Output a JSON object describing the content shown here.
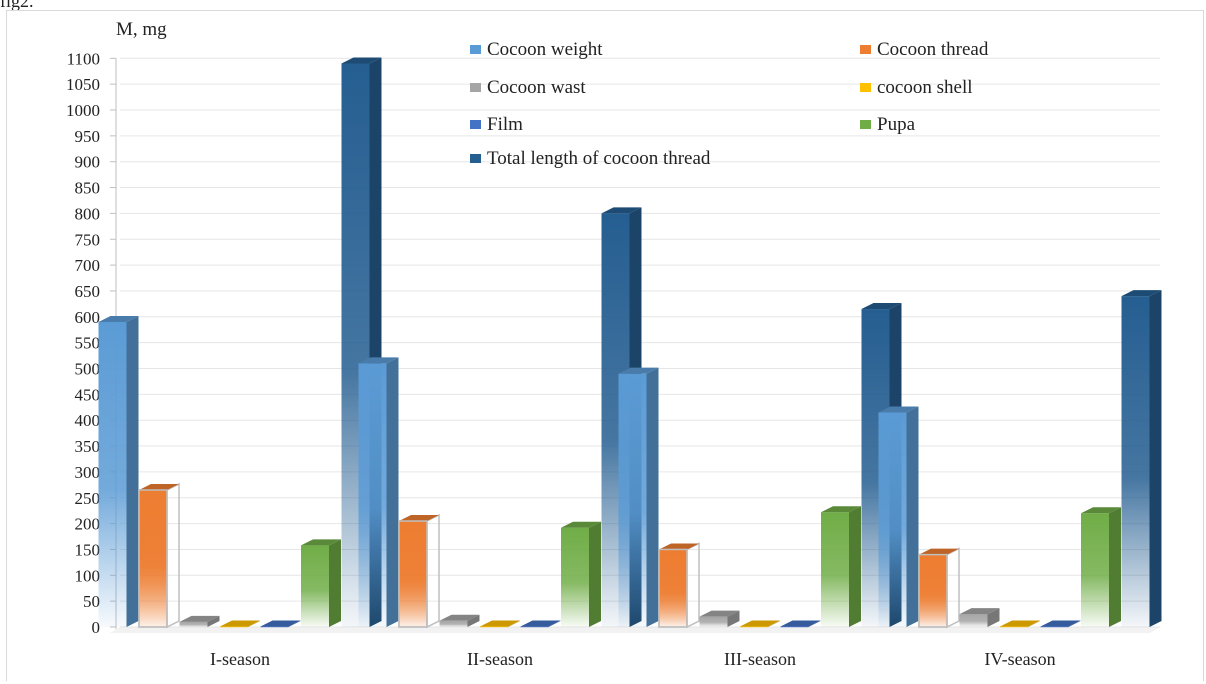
{
  "caption": "fig2.",
  "chart_data": {
    "type": "bar",
    "title": "",
    "ylabel": "M, mg",
    "xlabel": "",
    "ylim": [
      0,
      1100
    ],
    "ytick_step": 50,
    "grid": true,
    "legend_position": "top-center",
    "categories": [
      "I-season",
      "II-season",
      "III-season",
      "IV-season"
    ],
    "series": [
      {
        "name": "Cocoon weight",
        "color": "#5b9bd5",
        "values": [
          590,
          510,
          490,
          415
        ]
      },
      {
        "name": "Cocoon thread",
        "color": "#ed7d31",
        "values": [
          265,
          205,
          150,
          140
        ]
      },
      {
        "name": "Cocoon wast",
        "color": "#a5a5a5",
        "values": [
          10,
          12,
          20,
          25
        ]
      },
      {
        "name": "cocoon shell",
        "color": "#ffc000",
        "values": [
          1,
          1,
          1,
          1
        ]
      },
      {
        "name": "Film",
        "color": "#4472c4",
        "values": [
          1,
          1,
          1,
          1
        ]
      },
      {
        "name": "Pupa",
        "color": "#70ad47",
        "values": [
          158,
          192,
          222,
          220
        ]
      },
      {
        "name": "Total length of cocoon thread",
        "color": "#255e91",
        "values": [
          1090,
          800,
          615,
          640
        ]
      }
    ]
  }
}
